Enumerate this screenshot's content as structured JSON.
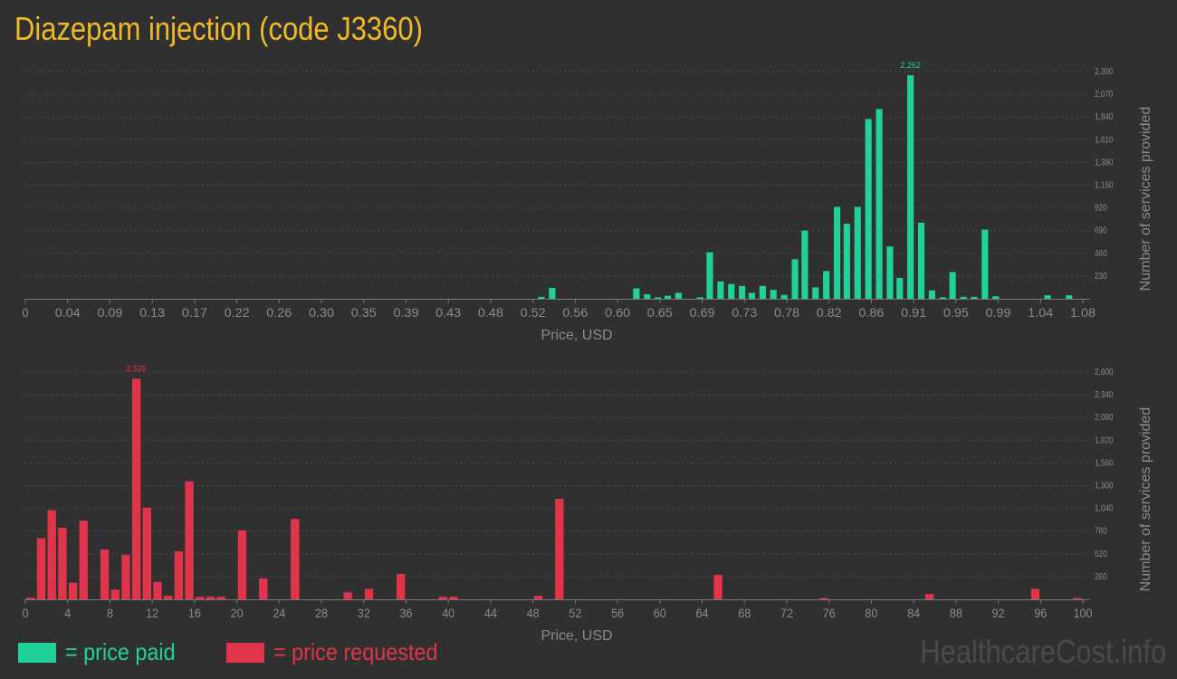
{
  "title": "Diazepam injection (code J3360)",
  "colors": {
    "paid": "#21d19a",
    "requested": "#e0344a",
    "title": "#f0b928",
    "axis": "#8a8a8a",
    "grid": "#4a4a4a",
    "background": "#303030"
  },
  "legend": {
    "paid": "= price paid",
    "requested": "= price requested"
  },
  "watermark": "HealthcareCost.info",
  "chart_data": [
    {
      "type": "bar",
      "title": "",
      "xlabel": "Price, USD",
      "ylabel": "Number of services provided",
      "xlim": [
        0,
        1.08
      ],
      "ylim": [
        0,
        2300
      ],
      "x_ticks": [
        "0",
        "0.04",
        "0.09",
        "0.13",
        "0.17",
        "0.22",
        "0.26",
        "0.30",
        "0.35",
        "0.39",
        "0.43",
        "0.48",
        "0.52",
        "0.56",
        "0.60",
        "0.65",
        "0.69",
        "0.73",
        "0.78",
        "0.82",
        "0.86",
        "0.91",
        "0.95",
        "0.99",
        "1.04",
        "1.08"
      ],
      "y_ticks": [
        "230",
        "460",
        "690",
        "920",
        "1,150",
        "1,380",
        "1,610",
        "1,840",
        "2,070",
        "2,300"
      ],
      "bar_width": 0.0066,
      "peak_label": "2,262",
      "x": [
        0.527,
        0.538,
        0.624,
        0.635,
        0.646,
        0.656,
        0.667,
        0.689,
        0.699,
        0.71,
        0.721,
        0.732,
        0.742,
        0.753,
        0.764,
        0.775,
        0.786,
        0.796,
        0.807,
        0.818,
        0.829,
        0.839,
        0.85,
        0.861,
        0.872,
        0.883,
        0.893,
        0.904,
        0.915,
        0.926,
        0.937,
        0.947,
        0.958,
        0.969,
        0.98,
        0.991,
        1.001,
        1.044,
        1.066
      ],
      "values": [
        20,
        110,
        105,
        45,
        15,
        30,
        60,
        15,
        470,
        175,
        150,
        130,
        60,
        130,
        90,
        40,
        400,
        690,
        115,
        280,
        930,
        760,
        930,
        1820,
        1920,
        530,
        210,
        2262,
        770,
        85,
        15,
        270,
        20,
        20,
        700,
        25,
        0,
        35,
        35
      ]
    },
    {
      "type": "bar",
      "title": "",
      "xlabel": "Price, USD",
      "ylabel": "Number of services provided",
      "xlim": [
        0,
        100
      ],
      "ylim": [
        0,
        2600
      ],
      "x_ticks": [
        "0",
        "4",
        "8",
        "12",
        "16",
        "20",
        "24",
        "28",
        "32",
        "36",
        "40",
        "44",
        "48",
        "52",
        "56",
        "60",
        "64",
        "68",
        "72",
        "76",
        "80",
        "84",
        "88",
        "92",
        "96",
        "100"
      ],
      "y_ticks": [
        "260",
        "520",
        "780",
        "1,040",
        "1,300",
        "1,560",
        "1,820",
        "2,080",
        "2,340",
        "2,600"
      ],
      "bar_width": 0.8,
      "peak_label": "2,525",
      "x": [
        0.5,
        1.5,
        2.5,
        3.5,
        4.5,
        5.5,
        7.5,
        8.5,
        9.5,
        10.5,
        11.5,
        12.5,
        13.5,
        14.5,
        15.5,
        16.5,
        17.5,
        18.5,
        20.5,
        22.5,
        25.5,
        30.5,
        32.5,
        35.5,
        39.5,
        40.5,
        48.5,
        50.5,
        65.5,
        75.5,
        85.5,
        95.5,
        99.5
      ],
      "values": [
        20,
        700,
        1020,
        820,
        190,
        900,
        570,
        110,
        510,
        2525,
        1050,
        200,
        40,
        550,
        1350,
        30,
        30,
        30,
        790,
        240,
        920,
        80,
        120,
        290,
        30,
        30,
        40,
        1150,
        280,
        15,
        60,
        120,
        15
      ]
    }
  ]
}
